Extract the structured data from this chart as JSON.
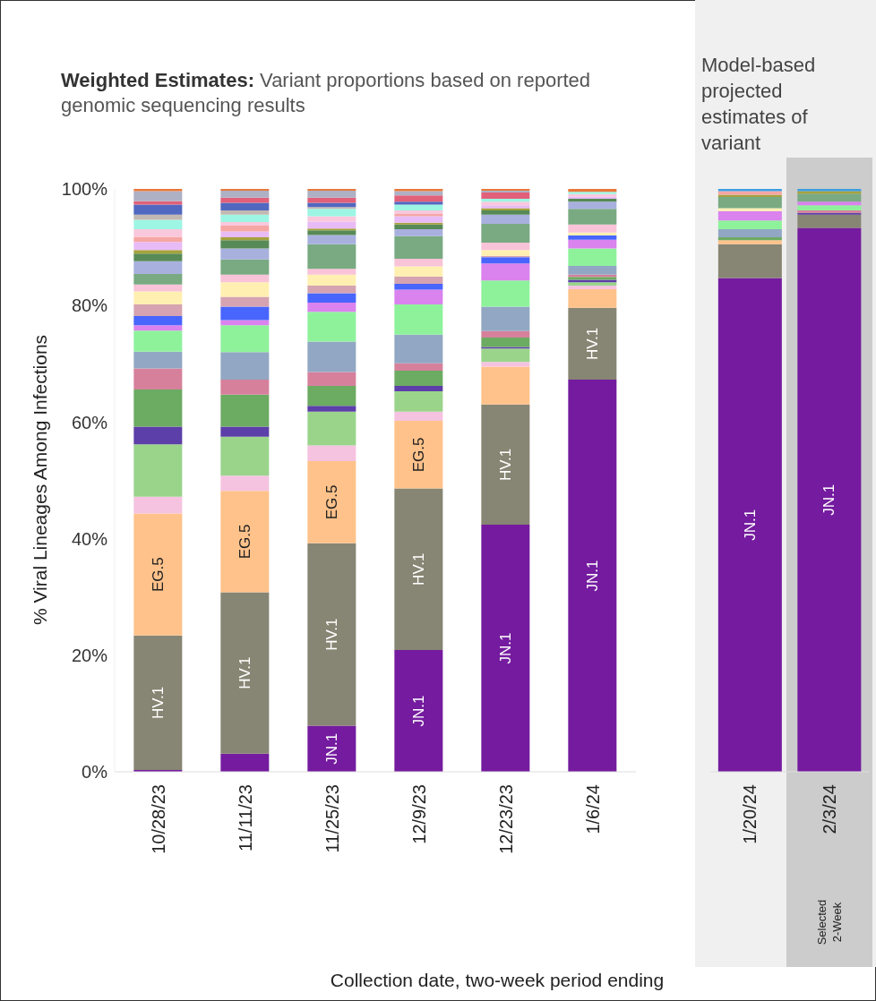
{
  "chart_data": [
    {
      "type": "bar",
      "stacked": true,
      "title": "Weighted Estimates: Variant proportions based on reported genomic sequencing results",
      "ylabel": "% Viral Lineages Among Infections",
      "xlabel": "Collection date, two-week period ending",
      "categories": [
        "10/28/23",
        "11/11/23",
        "11/25/23",
        "12/9/23",
        "12/23/23",
        "1/6/24"
      ],
      "ylim": [
        0,
        100
      ],
      "yticks": [
        {
          "value": 0,
          "label": "0%"
        },
        {
          "value": 20,
          "label": "20%"
        },
        {
          "value": 40,
          "label": "40%"
        },
        {
          "value": 60,
          "label": "60%"
        },
        {
          "value": 80,
          "label": "80%"
        },
        {
          "value": 100,
          "label": "100%"
        }
      ],
      "legend": false,
      "series": [
        {
          "name": "JN.1",
          "color": "#741b9f",
          "values": [
            0.3,
            3.1,
            7.9,
            20.9,
            42.4,
            67.3
          ]
        },
        {
          "name": "HV.1",
          "color": "#878573",
          "values": [
            23.1,
            27.7,
            31.3,
            27.7,
            20.6,
            12.3
          ]
        },
        {
          "name": "EG.5",
          "color": "#ffc28a",
          "values": [
            20.9,
            17.4,
            14.1,
            11.6,
            6.5,
            3.2
          ]
        },
        {
          "color": "#f5c3e0",
          "values": [
            2.9,
            2.6,
            2.7,
            1.6,
            0.8,
            0.6
          ]
        },
        {
          "color": "#9ad48b",
          "values": [
            9.0,
            6.7,
            5.8,
            3.5,
            2.3,
            0.6
          ]
        },
        {
          "color": "#5c3fa8",
          "values": [
            3.0,
            1.7,
            1.0,
            0.9,
            0.3,
            0.4
          ]
        },
        {
          "color": "#6cab62",
          "values": [
            6.4,
            5.5,
            3.4,
            2.6,
            1.6,
            0.5
          ]
        },
        {
          "color": "#d6809c",
          "values": [
            3.6,
            2.6,
            2.4,
            1.3,
            1.1,
            0.4
          ]
        },
        {
          "color": "#92a7c3",
          "values": [
            2.9,
            4.7,
            5.2,
            4.9,
            4.2,
            1.5
          ]
        },
        {
          "color": "#8ef29b",
          "values": [
            3.6,
            4.6,
            5.1,
            5.2,
            4.5,
            3.0
          ]
        },
        {
          "color": "#da82ee",
          "values": [
            0.9,
            0.9,
            1.6,
            2.5,
            2.9,
            1.5
          ]
        },
        {
          "color": "#4865fd",
          "values": [
            1.6,
            2.3,
            1.6,
            1.0,
            1.1,
            0.7
          ]
        },
        {
          "color": "#d5a3b1",
          "values": [
            2.0,
            1.7,
            1.3,
            1.3,
            0.2,
            0
          ]
        },
        {
          "color": "#fff0b2",
          "values": [
            2.2,
            2.5,
            1.9,
            1.7,
            1.0,
            0.5
          ]
        },
        {
          "color": "#f9c3d8",
          "values": [
            1.2,
            1.3,
            1.0,
            1.3,
            1.3,
            1.4
          ]
        },
        {
          "color": "#79aa82",
          "values": [
            1.8,
            2.6,
            4.2,
            3.9,
            3.2,
            2.7
          ]
        },
        {
          "color": "#a8b0de",
          "values": [
            2.2,
            1.9,
            1.6,
            1.2,
            1.6,
            1.2
          ]
        },
        {
          "color": "#578a57",
          "values": [
            1.3,
            1.4,
            0.8,
            0.8,
            0.7,
            0.5
          ]
        },
        {
          "color": "#a6a23e",
          "values": [
            0.6,
            0.5,
            0.3,
            0.3,
            0.4,
            0
          ]
        },
        {
          "color": "#e8bbf6",
          "values": [
            1.4,
            1.0,
            1.2,
            1.1,
            0.5,
            0.4
          ]
        },
        {
          "color": "#f6a6a4",
          "values": [
            0.9,
            1.0,
            0,
            0.4,
            0,
            0
          ]
        },
        {
          "color": "#f9c8dc",
          "values": [
            1.3,
            0.6,
            0.9,
            0.6,
            0.6,
            0.4
          ]
        },
        {
          "color": "#9df6e3",
          "values": [
            1.6,
            1.3,
            1.3,
            1.0,
            0.5,
            0.4
          ]
        },
        {
          "color": "#c2b9b2",
          "values": [
            0.9,
            0.7,
            0.3,
            0,
            0,
            0
          ]
        },
        {
          "color": "#5168c0",
          "values": [
            1.7,
            1.3,
            0.7,
            0.5,
            0,
            0
          ]
        },
        {
          "color": "#e1607a",
          "values": [
            0.6,
            0.9,
            0.9,
            1.1,
            1.1,
            0
          ]
        },
        {
          "color": "#aeb0c4",
          "values": [
            1.7,
            1.2,
            1.2,
            0.7,
            0.3,
            0
          ]
        },
        {
          "color": "#e8783a",
          "values": [
            0.4,
            0.3,
            0.3,
            0.4,
            0.3,
            0.5
          ]
        }
      ]
    },
    {
      "type": "bar",
      "stacked": true,
      "title": "Model-based projected estimates of variant",
      "categories": [
        "1/20/24",
        "2/3/24"
      ],
      "tick_labels": "x",
      "ylim": [
        0,
        100
      ],
      "legend": false,
      "bands": [
        {
          "axis": "x",
          "from": "2/3/24",
          "to": "2/3/24",
          "label": "Selected 2-Week",
          "color": "#cccccc"
        }
      ],
      "series": [
        {
          "name": "JN.1",
          "color": "#741b9f",
          "values": [
            84.7,
            93.3
          ]
        },
        {
          "color": "#878573",
          "values": [
            5.8,
            2.3
          ]
        },
        {
          "color": "#ffc28a",
          "values": [
            0.7,
            0
          ]
        },
        {
          "color": "#5c3fa8",
          "values": [
            0,
            0.3
          ]
        },
        {
          "color": "#6cab62",
          "values": [
            0.5,
            0
          ]
        },
        {
          "color": "#d6809c",
          "values": [
            0,
            0.4
          ]
        },
        {
          "color": "#92a7c3",
          "values": [
            1.4,
            0
          ]
        },
        {
          "color": "#8ef29b",
          "values": [
            1.5,
            0.9
          ]
        },
        {
          "color": "#da82ee",
          "values": [
            1.6,
            0.6
          ]
        },
        {
          "color": "#fff0b2",
          "values": [
            0.5,
            0
          ]
        },
        {
          "color": "#79aa82",
          "values": [
            1.9,
            1.4
          ]
        },
        {
          "color": "#a6a23e",
          "values": [
            0.4,
            0.4
          ]
        },
        {
          "color": "#f6a6a4",
          "values": [
            0.6,
            0
          ]
        },
        {
          "color": "#3d9ee0",
          "values": [
            0.4,
            0.4
          ]
        }
      ]
    }
  ]
}
